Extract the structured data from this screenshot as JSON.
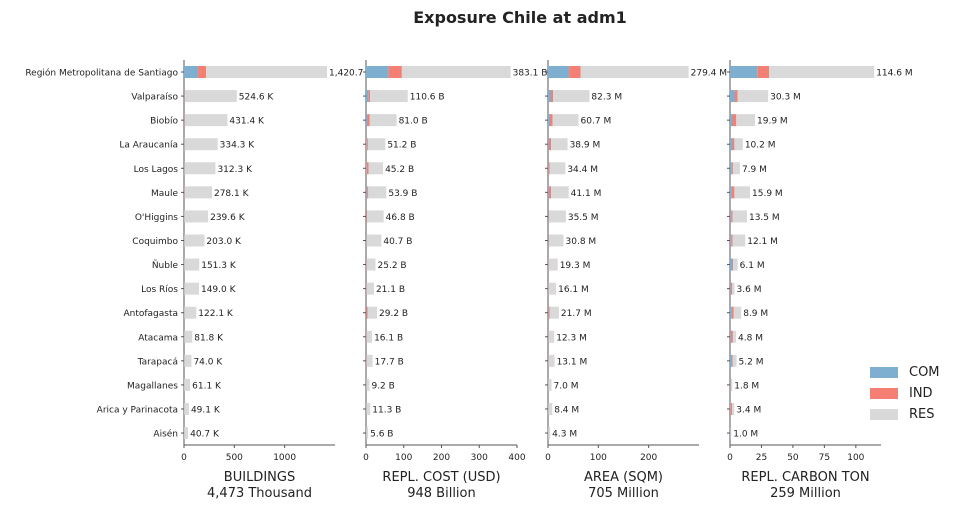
{
  "title": "Exposure Chile at adm1",
  "legend": [
    {
      "label": "COM",
      "color": "#7eaed0"
    },
    {
      "label": "IND",
      "color": "#f47f72"
    },
    {
      "label": "RES",
      "color": "#d9d9d9"
    }
  ],
  "chart_data": {
    "type": "bar",
    "orientation": "horizontal",
    "stacked": true,
    "title": "Exposure Chile at adm1",
    "categories": [
      "Región Metropolitana de Santiago",
      "Valparaíso",
      "Biobío",
      "La Araucanía",
      "Los Lagos",
      "Maule",
      "O'Higgins",
      "Coquimbo",
      "Ñuble",
      "Los Ríos",
      "Antofagasta",
      "Atacama",
      "Tarapacá",
      "Magallanes",
      "Arica y Parinacota",
      "Aisén"
    ],
    "legend_position": "right",
    "grid": false,
    "panels": [
      {
        "xlabel": "BUILDINGS",
        "total_label": "4,473 Thousand",
        "xlim": [
          0,
          1500
        ],
        "xticks": [
          0,
          500,
          1000
        ],
        "series": [
          {
            "name": "COM",
            "values": [
              140,
              6,
              3,
              2,
              2,
              2,
              1,
              1,
              1,
              1,
              1,
              1,
              1,
              0.5,
              0.5,
              0.5
            ]
          },
          {
            "name": "IND",
            "values": [
              80,
              4,
              5,
              2,
              2,
              3,
              1,
              1,
              1,
              1,
              1,
              1,
              1,
              0.5,
              0.5,
              0.5
            ]
          },
          {
            "name": "RES",
            "values": [
              1200.7,
              514.6,
              423.4,
              330.3,
              308.3,
              273.1,
              237.6,
              201.0,
              149.3,
              147.0,
              120.1,
              79.8,
              72.0,
              60.1,
              48.1,
              39.7
            ]
          }
        ],
        "labels": [
          "1,420.7 K",
          "524.6 K",
          "431.4 K",
          "334.3 K",
          "312.3 K",
          "278.1 K",
          "239.6 K",
          "203.0 K",
          "151.3 K",
          "149.0 K",
          "122.1 K",
          "81.8 K",
          "74.0 K",
          "61.1 K",
          "49.1 K",
          "40.7 K"
        ]
      },
      {
        "xlabel": "REPL. COST (USD)",
        "total_label": "948 Billion",
        "xlim": [
          0,
          400
        ],
        "xticks": [
          0,
          100,
          200,
          300,
          400
        ],
        "series": [
          {
            "name": "COM",
            "values": [
              60,
              7,
              4,
              2,
              2,
              3,
              1,
              1,
              0.5,
              0.5,
              1,
              0.5,
              0.5,
              0.3,
              0.3,
              0.2
            ]
          },
          {
            "name": "IND",
            "values": [
              35,
              4,
              6,
              3,
              5,
              3,
              2,
              1,
              1,
              1,
              3,
              1,
              1,
              0.5,
              0.5,
              0.2
            ]
          },
          {
            "name": "RES",
            "values": [
              288.1,
              99.6,
              71.0,
              46.2,
              38.2,
              47.9,
              43.8,
              38.7,
              23.7,
              19.6,
              25.2,
              14.6,
              16.2,
              8.4,
              10.5,
              5.2
            ]
          }
        ],
        "labels": [
          "383.1 B",
          "110.6 B",
          "81.0 B",
          "51.2 B",
          "45.2 B",
          "53.9 B",
          "46.8 B",
          "40.7 B",
          "25.2 B",
          "21.1 B",
          "29.2 B",
          "16.1 B",
          "17.7 B",
          "9.2 B",
          "11.3 B",
          "5.6 B"
        ]
      },
      {
        "xlabel": "AREA (SQM)",
        "total_label": "705 Million",
        "xlim": [
          0,
          300
        ],
        "xticks": [
          0,
          100,
          200
        ],
        "series": [
          {
            "name": "COM",
            "values": [
              42,
              6,
              4,
              2,
              1,
              2,
              1,
              1,
              0.5,
              0.5,
              1,
              0.5,
              0.5,
              0.3,
              0.3,
              0.2
            ]
          },
          {
            "name": "IND",
            "values": [
              23,
              4,
              5,
              4,
              2,
              4,
              1,
              1,
              0.5,
              0.5,
              2,
              0.5,
              0.5,
              0.2,
              0.2,
              0.1
            ]
          },
          {
            "name": "RES",
            "values": [
              214.4,
              72.3,
              51.7,
              32.9,
              31.4,
              35.1,
              33.5,
              28.8,
              18.3,
              15.1,
              18.7,
              11.3,
              12.1,
              6.5,
              7.9,
              4.0
            ]
          }
        ],
        "labels": [
          "279.4 M",
          "82.3 M",
          "60.7 M",
          "38.9 M",
          "34.4 M",
          "41.1 M",
          "35.5 M",
          "30.8 M",
          "19.3 M",
          "16.1 M",
          "21.7 M",
          "12.3 M",
          "13.1 M",
          "7.0 M",
          "8.4 M",
          "4.3 M"
        ]
      },
      {
        "xlabel": "REPL. CARBON TON",
        "total_label": "259 Million",
        "xlim": [
          0,
          120
        ],
        "xticks": [
          0,
          25,
          50,
          75,
          100
        ],
        "series": [
          {
            "name": "COM",
            "values": [
              22,
              4,
              2,
              2,
              1.5,
              1.5,
              1,
              1,
              2,
              0.8,
              1.5,
              0.8,
              1.8,
              0.5,
              0.5,
              0.4
            ]
          },
          {
            "name": "IND",
            "values": [
              9,
              2,
              3,
              1.5,
              0.8,
              2,
              1,
              1,
              0.5,
              0.8,
              1.5,
              1.5,
              0.5,
              0.3,
              1.2,
              0.2
            ]
          },
          {
            "name": "RES",
            "values": [
              83.6,
              24.3,
              14.9,
              6.7,
              5.6,
              12.4,
              11.5,
              10.1,
              3.6,
              2.0,
              5.9,
              2.5,
              2.9,
              1.0,
              1.7,
              0.4
            ]
          }
        ],
        "labels": [
          "114.6 M",
          "30.3 M",
          "19.9 M",
          "10.2 M",
          "7.9 M",
          "15.9 M",
          "13.5 M",
          "12.1 M",
          "6.1 M",
          "3.6 M",
          "8.9 M",
          "4.8 M",
          "5.2 M",
          "1.8 M",
          "3.4 M",
          "1.0 M"
        ]
      }
    ]
  }
}
